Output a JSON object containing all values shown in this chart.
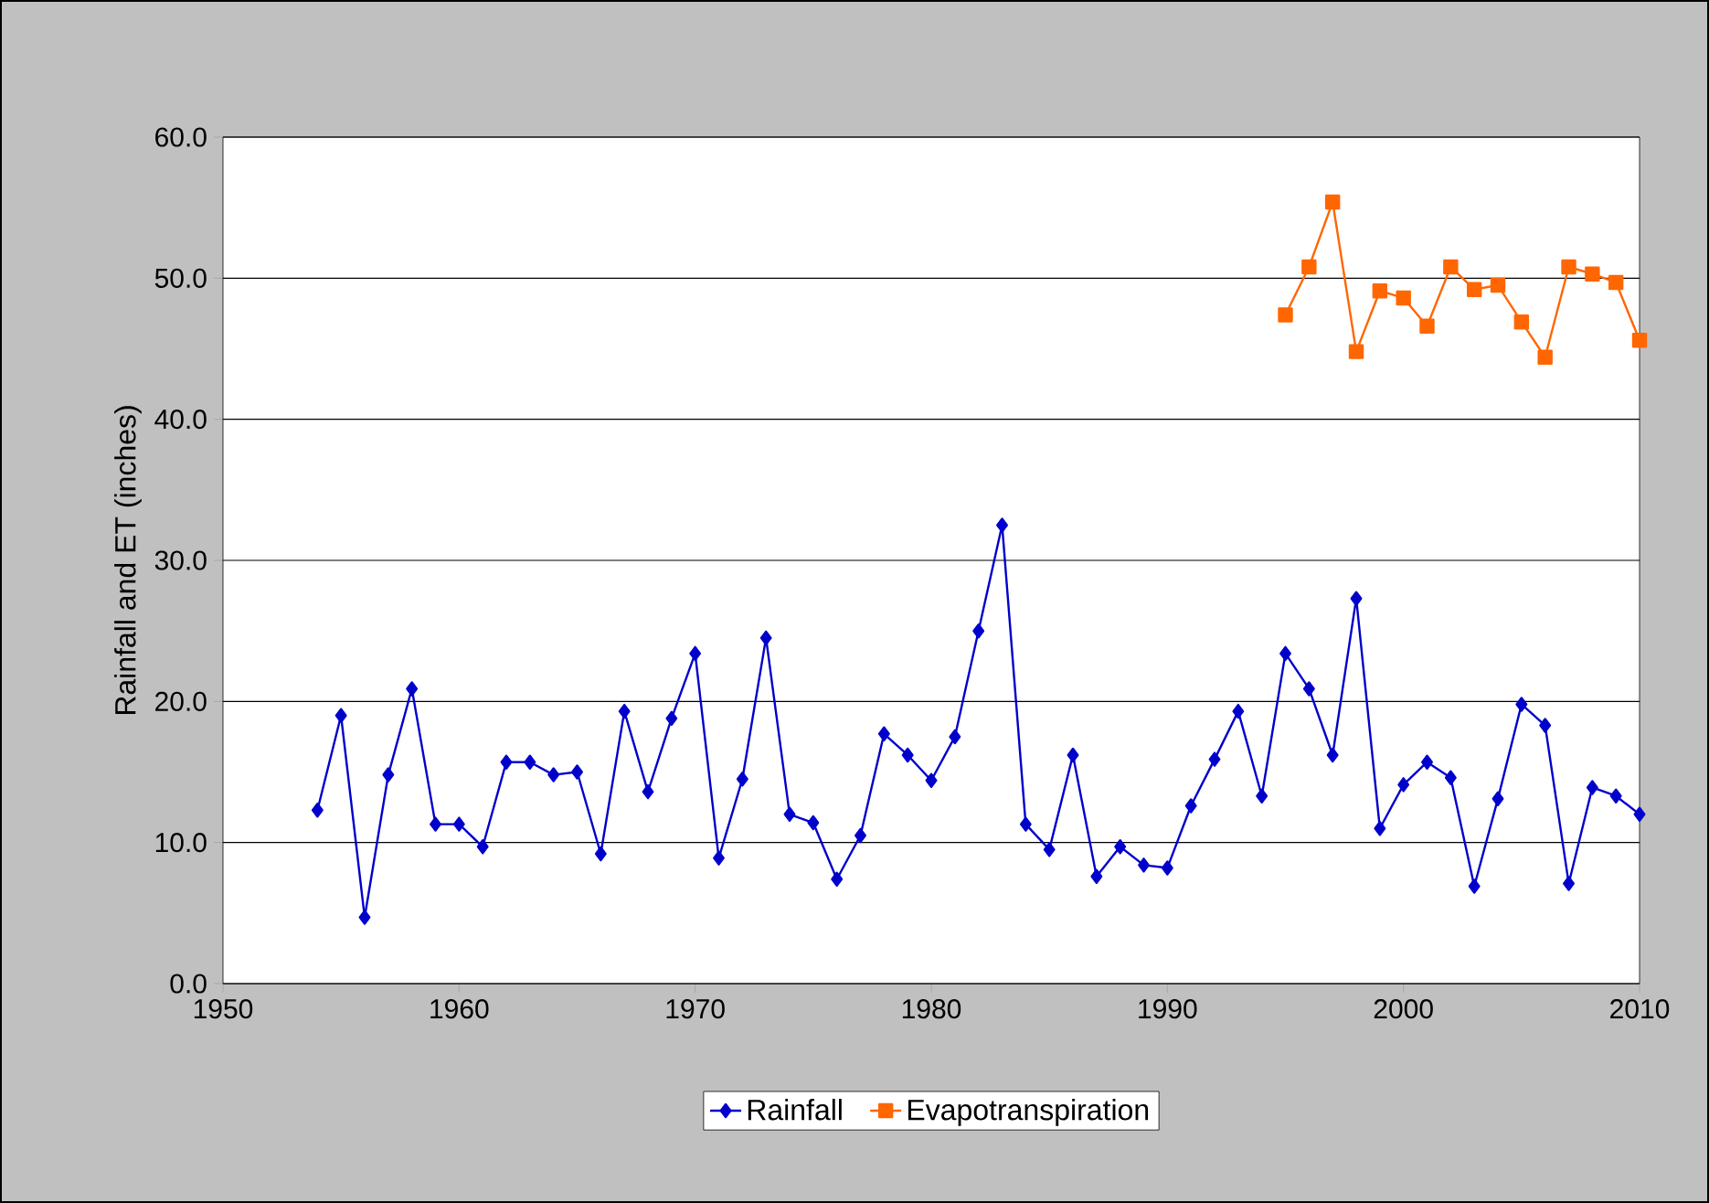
{
  "chart_data": {
    "type": "line",
    "ylabel": "Rainfall and ET (inches)",
    "xlim": [
      1950,
      2010
    ],
    "xticks": [
      1950,
      1960,
      1970,
      1980,
      1990,
      2000,
      2010
    ],
    "ylim": [
      0,
      60
    ],
    "yticks": [
      {
        "value": 0,
        "label": "0.0"
      },
      {
        "value": 10,
        "label": "10.0"
      },
      {
        "value": 20,
        "label": "20.0"
      },
      {
        "value": 30,
        "label": "30.0"
      },
      {
        "value": 40,
        "label": "40.0"
      },
      {
        "value": 50,
        "label": "50.0"
      },
      {
        "value": 60,
        "label": "60.0"
      }
    ],
    "grid": "y",
    "legend": "bottom",
    "line_style": "solid",
    "series": [
      {
        "name": "Rainfall",
        "color": "#0000cc",
        "marker": "diamond",
        "x": [
          1954,
          1955,
          1956,
          1957,
          1958,
          1959,
          1960,
          1961,
          1962,
          1963,
          1964,
          1965,
          1966,
          1967,
          1968,
          1969,
          1970,
          1971,
          1972,
          1973,
          1974,
          1975,
          1976,
          1977,
          1978,
          1979,
          1980,
          1981,
          1982,
          1983,
          1984,
          1985,
          1986,
          1987,
          1988,
          1989,
          1990,
          1991,
          1992,
          1993,
          1994,
          1995,
          1996,
          1997,
          1998,
          1999,
          2000,
          2001,
          2002,
          2003,
          2004,
          2005,
          2006,
          2007,
          2008,
          2009,
          2010
        ],
        "values": [
          12.3,
          19.0,
          4.7,
          14.8,
          20.9,
          11.3,
          11.3,
          9.7,
          15.7,
          15.7,
          14.8,
          15.0,
          9.2,
          19.3,
          13.6,
          18.8,
          23.4,
          8.9,
          14.5,
          24.5,
          12.0,
          11.4,
          7.4,
          10.5,
          17.7,
          16.2,
          14.4,
          17.5,
          25.0,
          32.5,
          11.3,
          9.5,
          16.2,
          7.6,
          9.7,
          8.4,
          8.2,
          12.6,
          15.9,
          19.3,
          13.3,
          23.4,
          20.9,
          16.2,
          27.3,
          11.0,
          14.1,
          15.7,
          14.6,
          6.9,
          13.1,
          19.8,
          18.3,
          7.1,
          13.9,
          13.3,
          12.0
        ]
      },
      {
        "name": "Evapotranspiration",
        "color": "#ff6600",
        "marker": "square",
        "x": [
          1995,
          1996,
          1997,
          1998,
          1999,
          2000,
          2001,
          2002,
          2003,
          2004,
          2005,
          2006,
          2007,
          2008,
          2009,
          2010
        ],
        "values": [
          47.4,
          50.8,
          55.4,
          44.8,
          49.1,
          48.6,
          46.6,
          50.8,
          49.2,
          49.5,
          46.9,
          44.4,
          50.8,
          50.3,
          49.7,
          45.6
        ]
      }
    ]
  }
}
